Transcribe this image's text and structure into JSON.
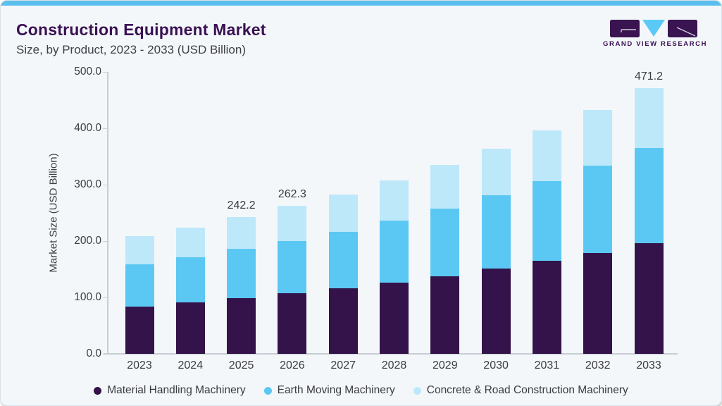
{
  "header": {
    "title": "Construction Equipment Market",
    "subtitle": "Size, by Product, 2023 - 2033 (USD Billion)"
  },
  "logo": {
    "text": "GRAND VIEW RESEARCH"
  },
  "colors": {
    "accent_strip": "#5ABFEC",
    "card_background": "#F3F7FA",
    "title_purple": "#3A1053",
    "axis_gray": "#C8CDD5",
    "text_gray": "#3B3B41"
  },
  "chart_data": {
    "type": "bar",
    "stacked": true,
    "title": "Construction Equipment Market Size, by Product, 2023 - 2033 (USD Billion)",
    "xlabel": "",
    "ylabel": "Market Size (USD Billion)",
    "ylim": [
      0,
      500
    ],
    "yticks": [
      "500.0",
      "400.0",
      "300.0",
      "200.0",
      "100.0",
      "0.0"
    ],
    "grid": false,
    "legend_position": "bottom",
    "categories": [
      "2023",
      "2024",
      "2025",
      "2026",
      "2027",
      "2028",
      "2029",
      "2030",
      "2031",
      "2032",
      "2033"
    ],
    "series": [
      {
        "name": "Material Handling Machinery",
        "color": "#331349",
        "values": [
          83.7,
          91.2,
          98.3,
          107.4,
          115.8,
          126.1,
          137.9,
          150.7,
          164.5,
          179.4,
          196.9
        ]
      },
      {
        "name": "Earth Moving Machinery",
        "color": "#5BC8F3",
        "values": [
          74.5,
          79.9,
          87.8,
          92.9,
          101.1,
          110.4,
          119.3,
          130.3,
          141.4,
          154.5,
          168.6
        ]
      },
      {
        "name": "Concrete & Road Construction Machinery",
        "color": "#BDE8FA",
        "values": [
          50.0,
          53.3,
          56.1,
          62.0,
          66.2,
          71.2,
          77.5,
          83.2,
          90.8,
          98.6,
          105.7
        ]
      }
    ],
    "totals": [
      208.2,
      224.4,
      242.2,
      262.3,
      283.1,
      307.7,
      334.7,
      364.2,
      396.7,
      432.5,
      471.2
    ],
    "bar_total_labels": {
      "2025": "242.2",
      "2026": "262.3",
      "2033": "471.2"
    }
  }
}
